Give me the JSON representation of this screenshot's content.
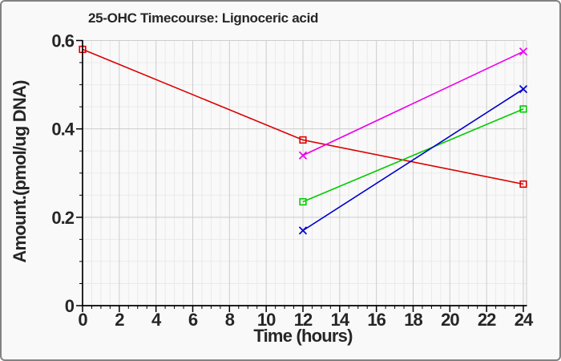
{
  "frame": {
    "background": "#f9f9f9",
    "border_color": "#828282"
  },
  "chart_data": {
    "type": "line",
    "title": "25-OHC Timecourse: Lignoceric acid",
    "xlabel": "Time (hours)",
    "ylabel": "Amount.(pmol/ug DNA)",
    "xlim": [
      0,
      24.17
    ],
    "ylim": [
      0,
      0.6
    ],
    "x_major_ticks": [
      0,
      2,
      4,
      6,
      8,
      10,
      12,
      14,
      16,
      18,
      20,
      22,
      24
    ],
    "x_tick_labels": [
      "0",
      "2",
      "4",
      "6",
      "8",
      "10",
      "12",
      "14",
      "16",
      "18",
      "20",
      "22",
      "24"
    ],
    "x_minor_step": 0.5,
    "y_major_ticks": [
      0,
      0.2,
      0.4,
      0.6
    ],
    "y_tick_labels": [
      "0",
      "0.2",
      "0.4",
      "0.6"
    ],
    "y_minor_step": 0.05,
    "grid": {
      "major_color": "#cccccc",
      "minor_color": "#eaeaea",
      "on": true
    },
    "axis_color": "#000000",
    "text_color": "#262626",
    "plot_background": "#f9f9f9",
    "legend": "none",
    "series": [
      {
        "name": "red-open-square-series",
        "color": "#dd0000",
        "marker": "square",
        "x": [
          0,
          12,
          24
        ],
        "y": [
          0.58,
          0.375,
          0.275
        ]
      },
      {
        "name": "magenta-x-series",
        "color": "#ee00ee",
        "marker": "x",
        "x": [
          12,
          24
        ],
        "y": [
          0.34,
          0.575
        ]
      },
      {
        "name": "green-open-square-series",
        "color": "#00cc00",
        "marker": "square",
        "x": [
          12,
          24
        ],
        "y": [
          0.235,
          0.445
        ]
      },
      {
        "name": "blue-x-series",
        "color": "#0000cc",
        "marker": "x",
        "x": [
          12,
          24
        ],
        "y": [
          0.17,
          0.49
        ]
      }
    ]
  }
}
